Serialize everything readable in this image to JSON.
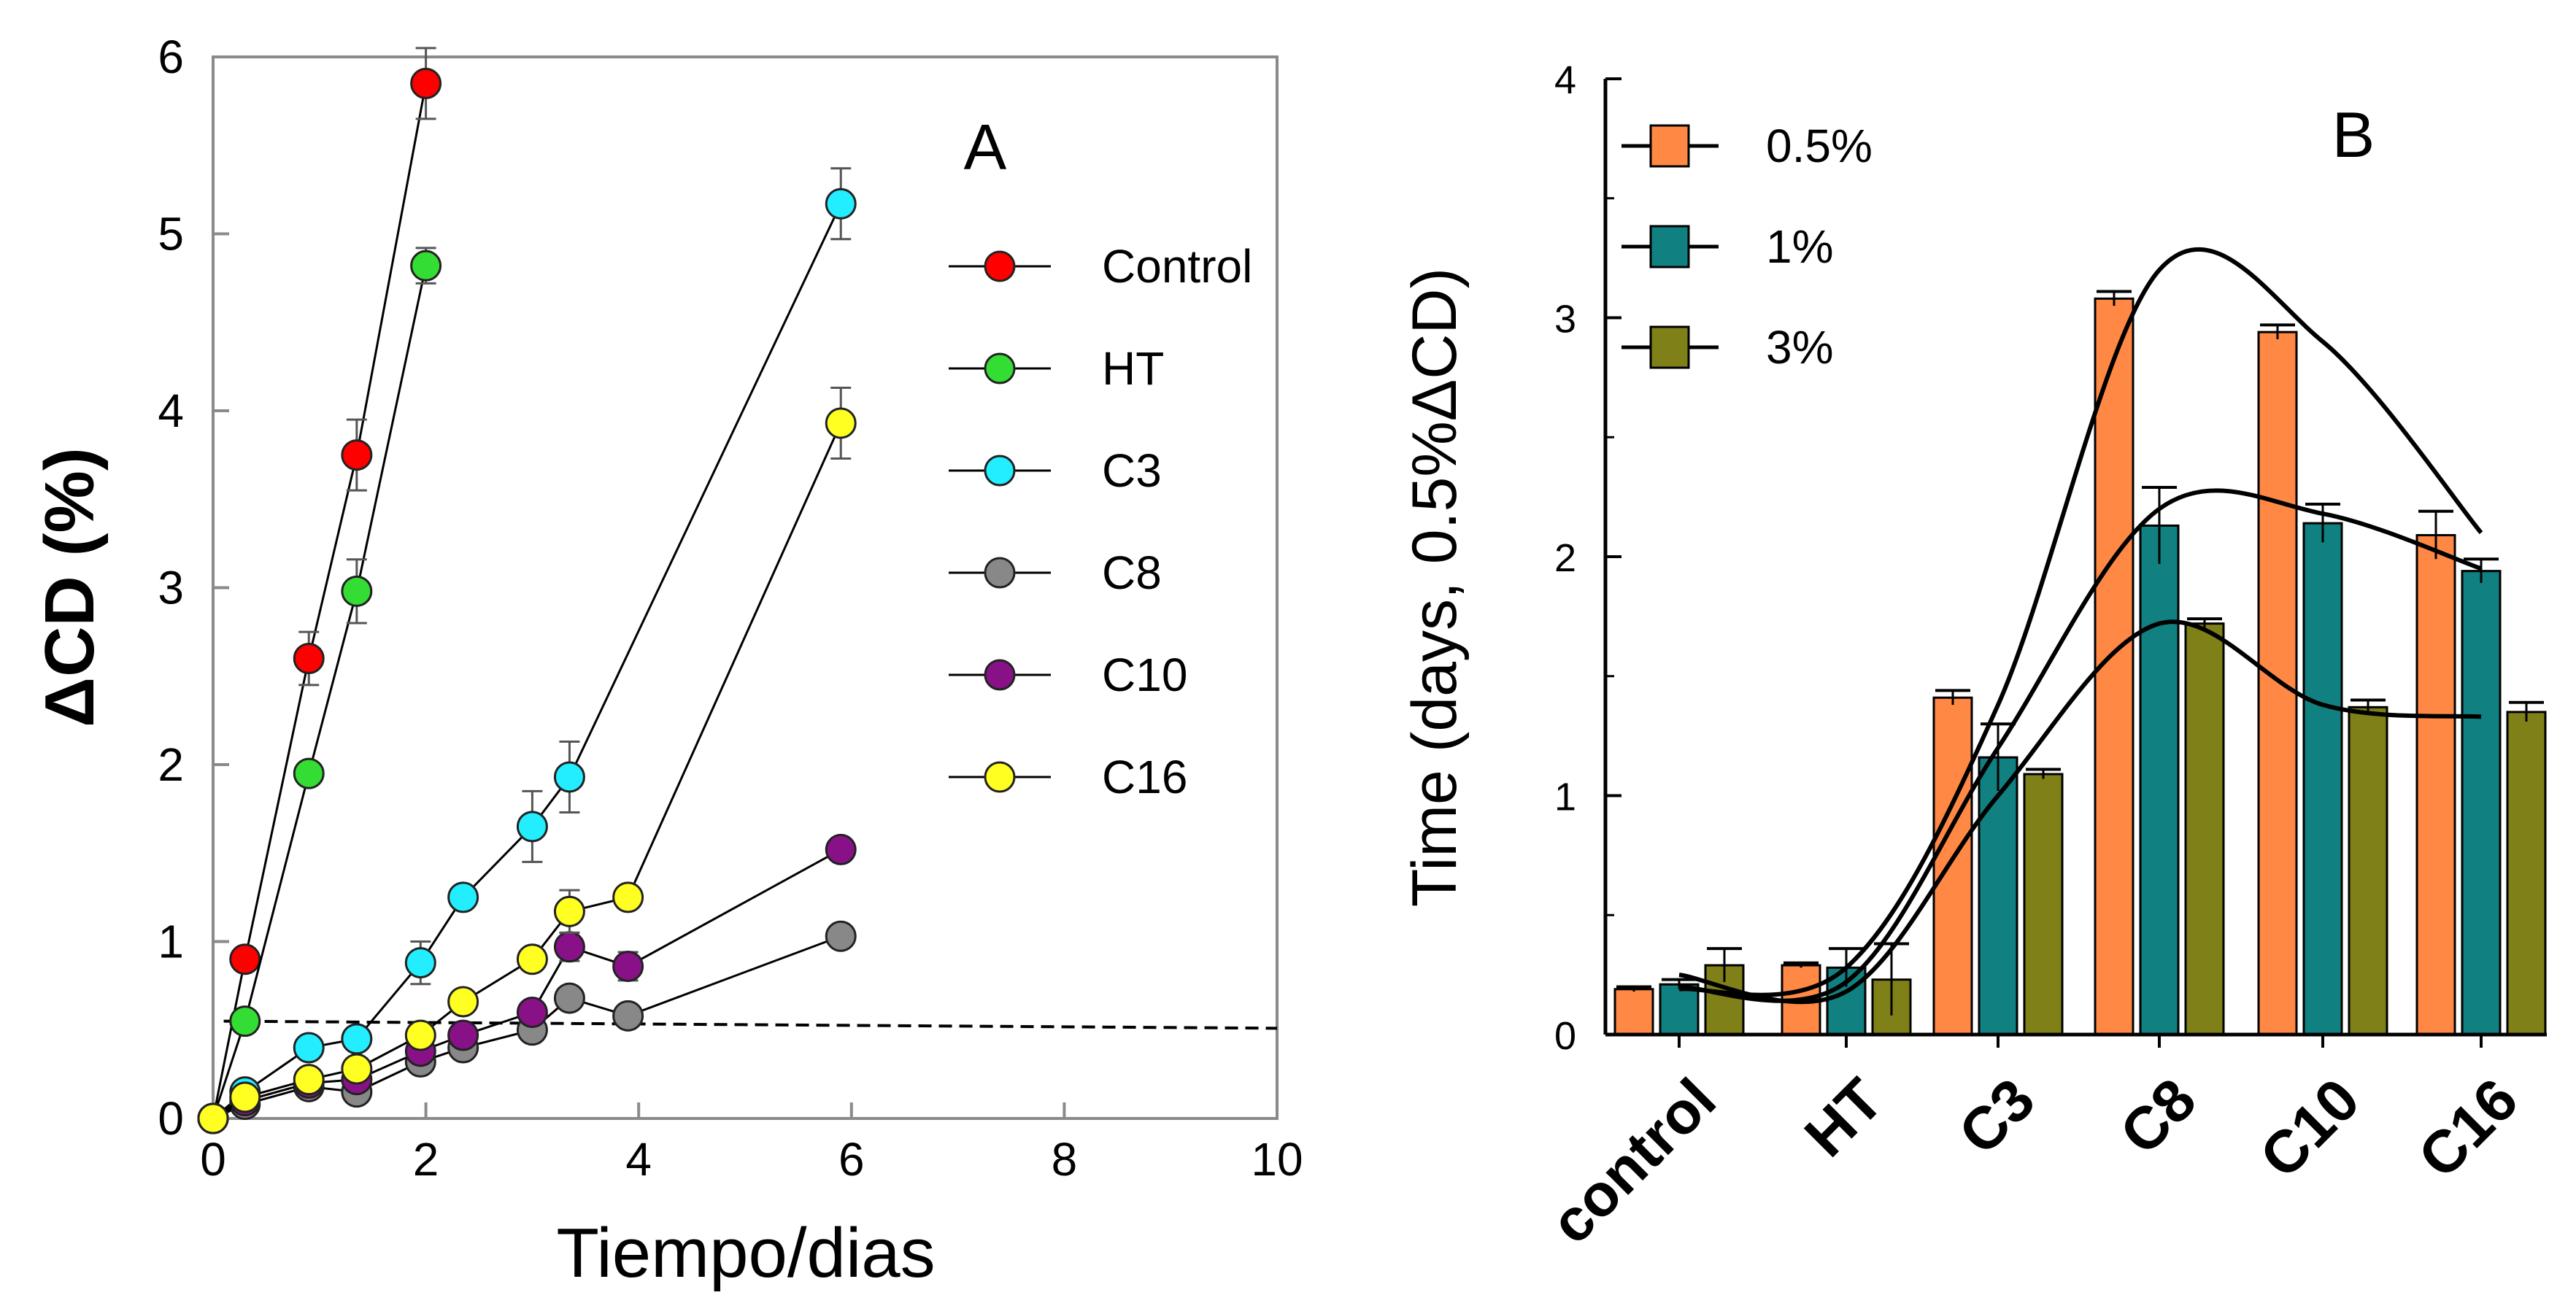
{
  "chart_data": [
    {
      "type": "line",
      "panel_label": "A",
      "xlabel": "Tiempo/dias",
      "ylabel": "ΔCD (%)",
      "xlim": [
        0,
        10
      ],
      "ylim": [
        0,
        6
      ],
      "xticks": [
        "0",
        "2",
        "4",
        "6",
        "8",
        "10"
      ],
      "yticks": [
        "0",
        "1",
        "2",
        "3",
        "4",
        "5",
        "6"
      ],
      "legend_position": "right",
      "threshold_line": {
        "style": "dashed",
        "x": [
          0.1,
          10
        ],
        "y": [
          0.55,
          0.51
        ]
      },
      "series": [
        {
          "name": "Control",
          "color": "#ff0000",
          "x": [
            0,
            0.3,
            0.9,
            1.35,
            2.0
          ],
          "y": [
            0,
            0.9,
            2.6,
            3.75,
            5.85
          ],
          "err": [
            0,
            0.05,
            0.15,
            0.2,
            0.2
          ]
        },
        {
          "name": "HT",
          "color": "#33dd33",
          "x": [
            0,
            0.3,
            0.9,
            1.35,
            2.0
          ],
          "y": [
            0,
            0.55,
            1.95,
            2.98,
            4.82
          ],
          "err": [
            0,
            0.05,
            0.05,
            0.18,
            0.1
          ]
        },
        {
          "name": "C3",
          "color": "#22eeff",
          "x": [
            0,
            0.3,
            0.9,
            1.35,
            1.95,
            2.35,
            3.0,
            3.35,
            5.9
          ],
          "y": [
            0,
            0.15,
            0.4,
            0.45,
            0.88,
            1.25,
            1.65,
            1.93,
            5.17
          ],
          "err": [
            0,
            0.05,
            0.05,
            0.05,
            0.12,
            0.05,
            0.2,
            0.2,
            0.2
          ]
        },
        {
          "name": "C8",
          "color": "#888888",
          "x": [
            0,
            0.3,
            0.9,
            1.35,
            1.95,
            2.35,
            3.0,
            3.35,
            3.9,
            5.9
          ],
          "y": [
            0,
            0.08,
            0.18,
            0.15,
            0.32,
            0.4,
            0.5,
            0.68,
            0.58,
            1.03
          ],
          "err": [
            0,
            0.03,
            0.03,
            0.03,
            0.05,
            0.05,
            0.05,
            0.05,
            0.05,
            0.05
          ]
        },
        {
          "name": "C10",
          "color": "#881188",
          "x": [
            0,
            0.3,
            0.9,
            1.35,
            1.95,
            2.35,
            3.0,
            3.35,
            3.9,
            5.9
          ],
          "y": [
            0,
            0.1,
            0.2,
            0.22,
            0.38,
            0.47,
            0.6,
            0.97,
            0.86,
            1.52
          ],
          "err": [
            0,
            0.03,
            0.03,
            0.03,
            0.05,
            0.05,
            0.05,
            0.08,
            0.08,
            0.05
          ]
        },
        {
          "name": "C16",
          "color": "#ffff22",
          "x": [
            0,
            0.3,
            0.9,
            1.35,
            1.95,
            2.35,
            3.0,
            3.35,
            3.9,
            5.9
          ],
          "y": [
            0,
            0.12,
            0.22,
            0.28,
            0.47,
            0.66,
            0.9,
            1.17,
            1.25,
            3.93
          ],
          "err": [
            0,
            0.03,
            0.05,
            0.05,
            0.05,
            0.05,
            0.05,
            0.12,
            0.05,
            0.2
          ]
        }
      ]
    },
    {
      "type": "bar",
      "panel_label": "B",
      "xlabel": "",
      "ylabel": "Time (days,  0.5%ΔCD)",
      "ylim": [
        0,
        4
      ],
      "yticks": [
        "0",
        "1",
        "2",
        "3",
        "4"
      ],
      "categories": [
        "control",
        "HT",
        "C3",
        "C8",
        "C10",
        "C16"
      ],
      "legend_position": "top-left",
      "series": [
        {
          "name": "0.5%",
          "color": "#ff8844",
          "values": [
            0.19,
            0.29,
            1.41,
            3.08,
            2.94,
            2.09
          ],
          "err": [
            0.01,
            0.01,
            0.03,
            0.03,
            0.03,
            0.1
          ]
        },
        {
          "name": "1%",
          "color": "#118080",
          "values": [
            0.21,
            0.28,
            1.16,
            2.13,
            2.14,
            1.94
          ],
          "err": [
            0.02,
            0.08,
            0.14,
            0.16,
            0.08,
            0.05
          ]
        },
        {
          "name": "3%",
          "color": "#808018",
          "values": [
            0.29,
            0.23,
            1.09,
            1.72,
            1.37,
            1.35
          ],
          "err": [
            0.07,
            0.15,
            0.02,
            0.02,
            0.03,
            0.04
          ]
        }
      ],
      "trend_curves": [
        {
          "series": "0.5%",
          "x": [
            0,
            1,
            2,
            3,
            4,
            5
          ],
          "y": [
            0.19,
            0.28,
            1.38,
            3.2,
            2.9,
            2.1
          ]
        },
        {
          "series": "1%",
          "x": [
            0,
            1,
            2,
            3,
            4,
            5
          ],
          "y": [
            0.2,
            0.22,
            1.2,
            2.2,
            2.18,
            1.95
          ]
        },
        {
          "series": "3%",
          "x": [
            0,
            1,
            2,
            3,
            4,
            5
          ],
          "y": [
            0.25,
            0.18,
            1.0,
            1.72,
            1.38,
            1.33
          ]
        }
      ]
    }
  ]
}
